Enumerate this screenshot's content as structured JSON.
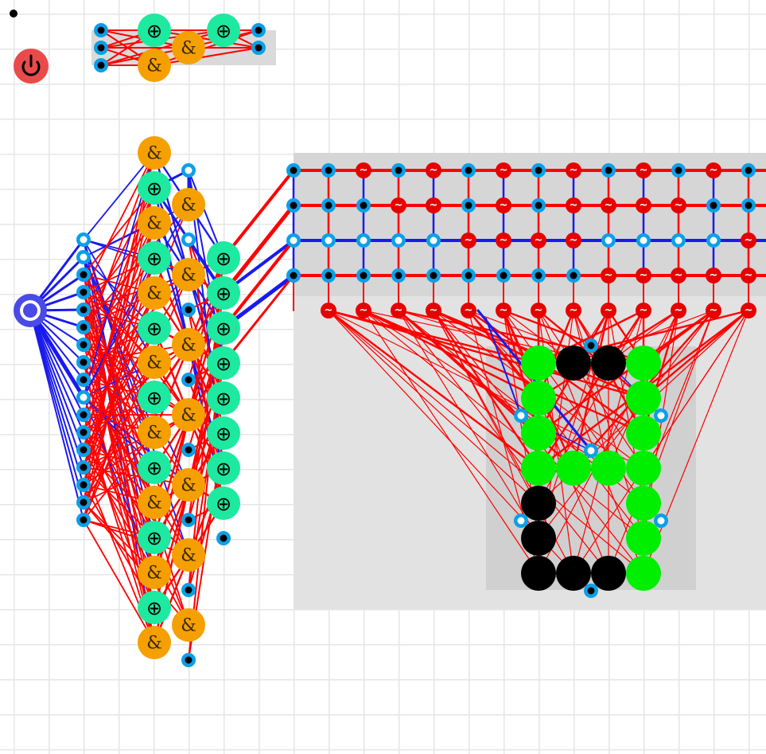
{
  "toolbar": {
    "power_icon": "power-icon",
    "power_color": "#e94b4b"
  },
  "symbols": {
    "xor": "⊕",
    "and": "&",
    "sine": "~"
  },
  "colors": {
    "wire_on": "#ff0000",
    "wire_off": "#1a1aee",
    "pin": "#0aa0e8",
    "xor_gate": "#1de9a0",
    "and_gate": "#f5a000",
    "lamp_off": "#e60000",
    "segment_on": "#00ee00",
    "segment_off": "#000000",
    "panel": "#dcdcdc",
    "source": "#4a4ae6"
  },
  "display": {
    "segments_on": [
      "top-right",
      "upper-right",
      "middle",
      "lower-right-1",
      "lower-right-2",
      "bottom-right",
      "upper-left"
    ],
    "segments_off": [
      "top-left",
      "top-middle",
      "lower-left",
      "bottom"
    ]
  }
}
